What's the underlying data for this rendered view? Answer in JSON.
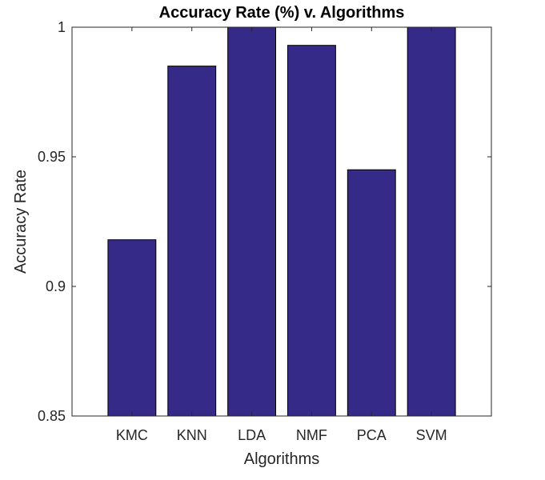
{
  "chart_data": {
    "type": "bar",
    "title": "Accuracy Rate (%)  v. Algorithms",
    "xlabel": "Algorithms",
    "ylabel": "Accuracy Rate",
    "categories": [
      "KMC",
      "KNN",
      "LDA",
      "NMF",
      "PCA",
      "SVM"
    ],
    "values": [
      0.918,
      0.985,
      1.0,
      0.993,
      0.945,
      1.0
    ],
    "ylim": [
      0.85,
      1.0
    ],
    "yticks": [
      0.85,
      0.9,
      0.95,
      1
    ],
    "ytick_labels": [
      "0.85",
      "0.9",
      "0.95",
      "1"
    ],
    "grid": false,
    "bar_color": "#352a87",
    "edge_color": "#000000"
  }
}
